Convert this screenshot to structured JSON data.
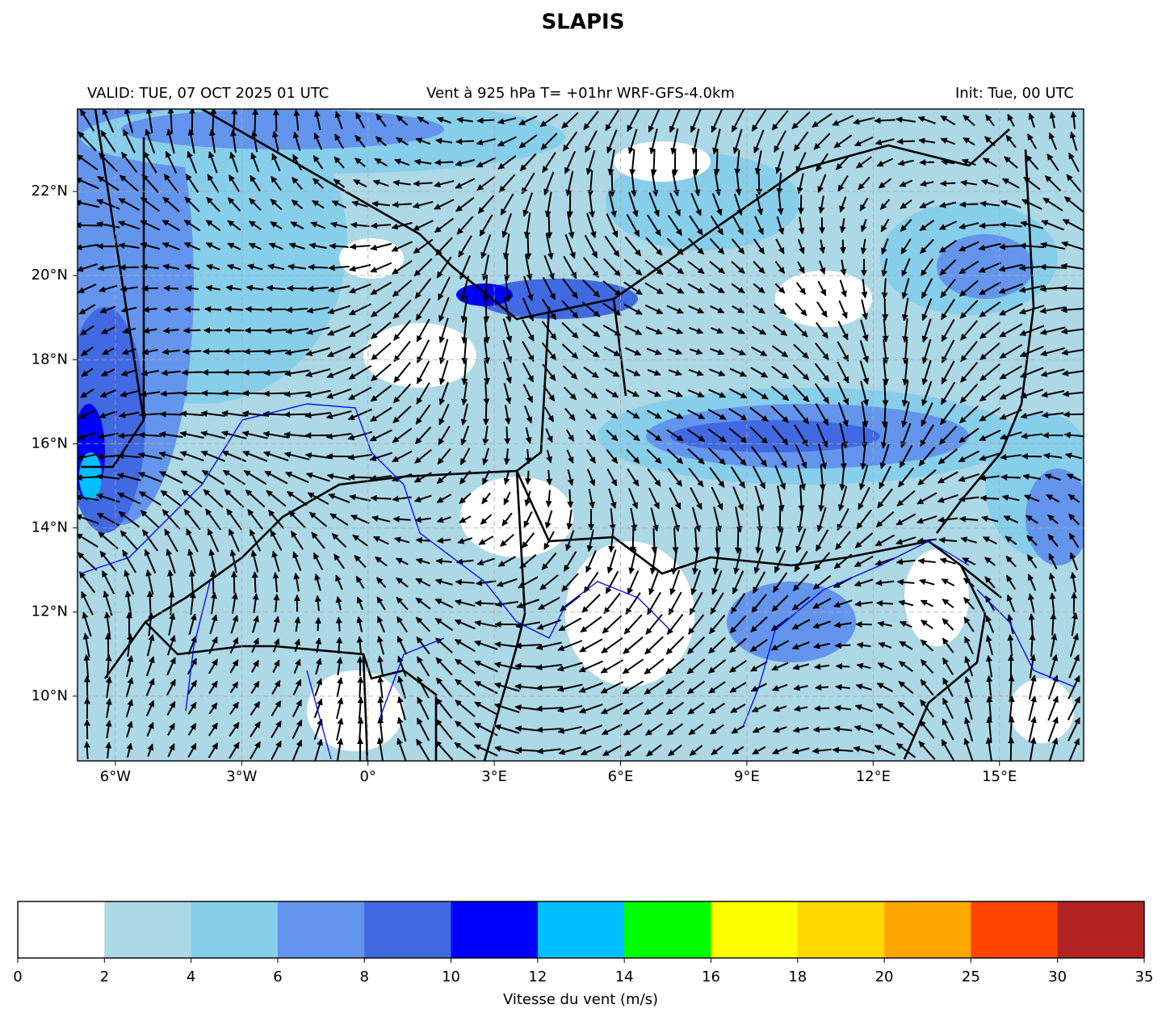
{
  "title": "SLAPIS",
  "header": {
    "left": "VALID: TUE, 07 OCT 2025 01 UTC",
    "center": "Vent à 925 hPa T= +01hr  WRF-GFS-4.0km",
    "right": "Init: Tue, 00 UTC"
  },
  "map": {
    "lonlim": [
      -6.9,
      17.0
    ],
    "latlim": [
      8.46,
      23.96
    ],
    "grid": true,
    "lon_ticks": [
      {
        "value": -6,
        "label": "6°W"
      },
      {
        "value": -3,
        "label": "3°W"
      },
      {
        "value": 0,
        "label": "0°"
      },
      {
        "value": 3,
        "label": "3°E"
      },
      {
        "value": 6,
        "label": "6°E"
      },
      {
        "value": 9,
        "label": "9°E"
      },
      {
        "value": 12,
        "label": "12°E"
      },
      {
        "value": 15,
        "label": "15°E"
      }
    ],
    "lat_ticks": [
      {
        "value": 10,
        "label": "10°N"
      },
      {
        "value": 12,
        "label": "12°N"
      },
      {
        "value": 14,
        "label": "14°N"
      },
      {
        "value": 16,
        "label": "16°N"
      },
      {
        "value": 18,
        "label": "18°N"
      },
      {
        "value": 20,
        "label": "20°N"
      },
      {
        "value": 22,
        "label": "22°N"
      }
    ]
  },
  "colorbar": {
    "label": "Vitesse du vent (m/s)",
    "bounds": [
      0,
      2,
      4,
      6,
      8,
      10,
      12,
      14,
      16,
      18,
      20,
      25,
      30,
      35
    ],
    "colors": [
      "#ffffff",
      "#add8e6",
      "#87ceeb",
      "#6495ed",
      "#4169e1",
      "#0000ff",
      "#00bfff",
      "#00ff00",
      "#ffff00",
      "#ffd700",
      "#ffa500",
      "#ff4500",
      "#b22222"
    ]
  }
}
